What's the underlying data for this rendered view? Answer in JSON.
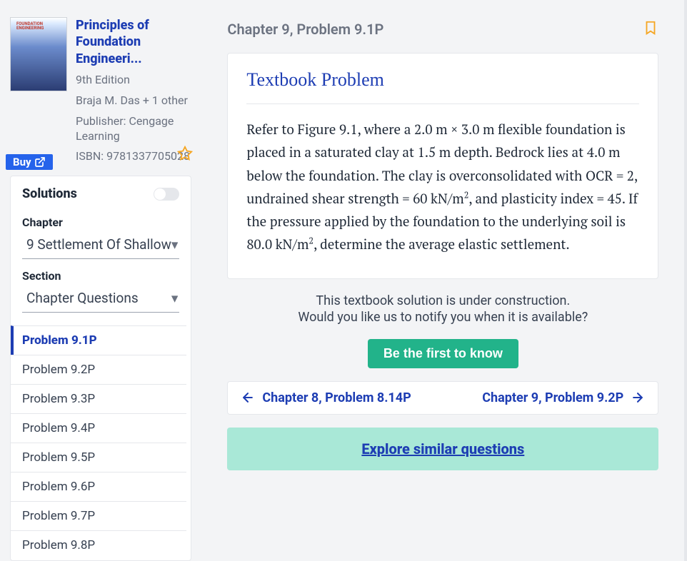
{
  "book": {
    "title": "Principles of Foundation Engineeri...",
    "edition": "9th Edition",
    "authors": "Braja M. Das + 1 other",
    "publisher": "Publisher: Cengage Learning",
    "isbn": "ISBN: 9781337705028",
    "buy_label": "Buy"
  },
  "solutions": {
    "title": "Solutions",
    "chapter_label": "Chapter",
    "chapter_value": "9 Settlement Of Shallow",
    "section_label": "Section",
    "section_value": "Chapter Questions",
    "problems": [
      "Problem 9.1P",
      "Problem 9.2P",
      "Problem 9.3P",
      "Problem 9.4P",
      "Problem 9.5P",
      "Problem 9.6P",
      "Problem 9.7P",
      "Problem 9.8P"
    ],
    "active_index": 0
  },
  "crumb": "Chapter 9, Problem 9.1P",
  "problem": {
    "heading": "Textbook Problem",
    "body_html": "Refer to Figure 9.1, where a 2.0 m × 3.0 m flexible foundation is placed in a saturated clay at 1.5 m depth. Bedrock lies at 4.0 m below the foundation. The clay is overconsolidated with OCR = 2, undrained shear strength = 60 kN/m<sup>2</sup>, and plasticity index = 45. If the pressure applied by the foundation to the underlying soil is 80.0 kN/m<sup>2</sup>, determine the average elastic settlement."
  },
  "under_construction": {
    "line1": "This textbook solution is under construction.",
    "line2": "Would you like us to notify you when it is available?",
    "cta": "Be the first to know"
  },
  "nav": {
    "prev": "Chapter 8, Problem 8.14P",
    "next": "Chapter 9, Problem 9.2P"
  },
  "explore": "Explore similar questions"
}
